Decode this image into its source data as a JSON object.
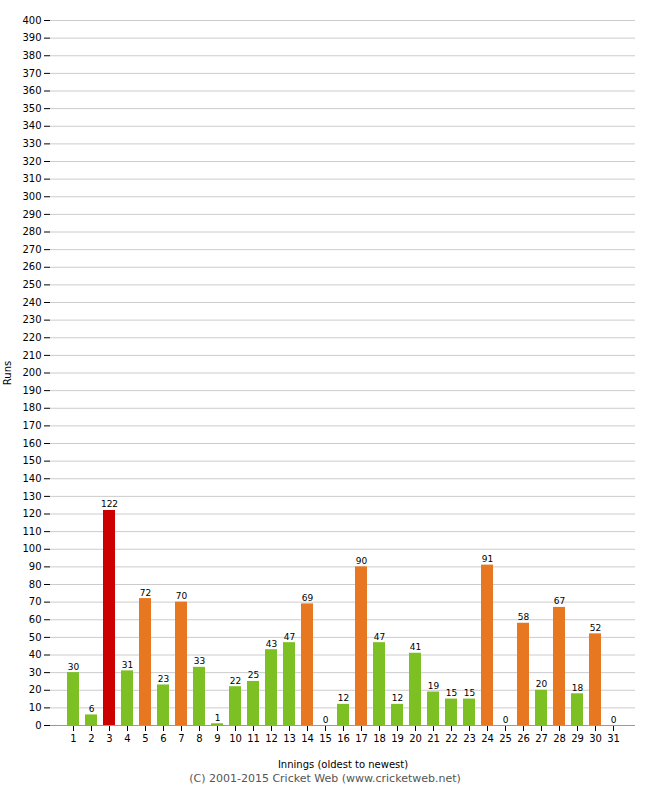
{
  "chart_data": {
    "type": "bar",
    "xlabel": "Innings (oldest to newest)",
    "ylabel": "Runs",
    "categories": [
      "1",
      "2",
      "3",
      "4",
      "5",
      "6",
      "7",
      "8",
      "9",
      "10",
      "11",
      "12",
      "13",
      "14",
      "15",
      "16",
      "17",
      "18",
      "19",
      "20",
      "21",
      "22",
      "23",
      "24",
      "25",
      "26",
      "27",
      "28",
      "29",
      "30",
      "31"
    ],
    "values": [
      30,
      6,
      122,
      31,
      72,
      23,
      70,
      33,
      1,
      22,
      25,
      43,
      47,
      69,
      0,
      12,
      90,
      47,
      12,
      41,
      19,
      15,
      15,
      91,
      0,
      58,
      20,
      67,
      18,
      52,
      0
    ],
    "colors": [
      "#7cc024",
      "#7cc024",
      "#cc0000",
      "#7cc024",
      "#e87722",
      "#7cc024",
      "#e87722",
      "#7cc024",
      "#7cc024",
      "#7cc024",
      "#7cc024",
      "#7cc024",
      "#7cc024",
      "#e87722",
      "#7cc024",
      "#7cc024",
      "#e87722",
      "#7cc024",
      "#7cc024",
      "#7cc024",
      "#7cc024",
      "#7cc024",
      "#7cc024",
      "#e87722",
      "#7cc024",
      "#e87722",
      "#7cc024",
      "#e87722",
      "#7cc024",
      "#e87722",
      "#7cc024"
    ],
    "ylim": [
      0,
      400
    ],
    "yticks": [
      0,
      10,
      20,
      30,
      40,
      50,
      60,
      70,
      80,
      90,
      100,
      110,
      120,
      130,
      140,
      150,
      160,
      170,
      180,
      190,
      200,
      210,
      220,
      230,
      240,
      250,
      260,
      270,
      280,
      290,
      300,
      310,
      320,
      330,
      340,
      350,
      360,
      370,
      380,
      390,
      400
    ],
    "grid": true,
    "data_labels": true,
    "annotations": [
      "(C) 2001-2015 Cricket Web (www.cricketweb.net)"
    ]
  }
}
